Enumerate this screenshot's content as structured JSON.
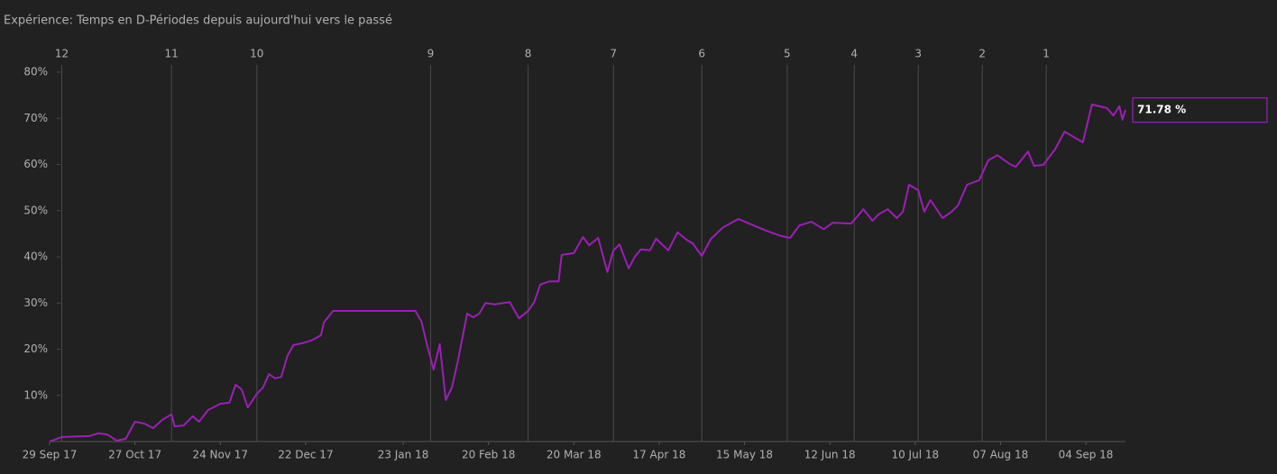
{
  "chart_data": {
    "type": "line",
    "title": "Expérience: Temps en D-Périodes depuis aujourd'hui vers le passé",
    "xlim": [
      "2017-09-29",
      "2018-09-17"
    ],
    "xticks": [
      {
        "value": "2017-09-29",
        "label": "29 Sep 17"
      },
      {
        "value": "2017-10-27",
        "label": "27 Oct 17"
      },
      {
        "value": "2017-11-24",
        "label": "24 Nov 17"
      },
      {
        "value": "2017-12-22",
        "label": "22 Dec 17"
      },
      {
        "value": "2018-01-23",
        "label": "23 Jan 18"
      },
      {
        "value": "2018-02-20",
        "label": "20 Feb 18"
      },
      {
        "value": "2018-03-20",
        "label": "20 Mar 18"
      },
      {
        "value": "2018-04-17",
        "label": "17 Apr 18"
      },
      {
        "value": "2018-05-15",
        "label": "15 May 18"
      },
      {
        "value": "2018-06-12",
        "label": "12 Jun 18"
      },
      {
        "value": "2018-07-10",
        "label": "10 Jul 18"
      },
      {
        "value": "2018-08-07",
        "label": "07 Aug 18"
      },
      {
        "value": "2018-09-04",
        "label": "04 Sep 18"
      }
    ],
    "x2ticks": [
      {
        "value": "2017-10-03",
        "label": "12"
      },
      {
        "value": "2017-11-08",
        "label": "11"
      },
      {
        "value": "2017-12-06",
        "label": "10"
      },
      {
        "value": "2018-02-01",
        "label": "9"
      },
      {
        "value": "2018-03-05",
        "label": "8"
      },
      {
        "value": "2018-04-02",
        "label": "7"
      },
      {
        "value": "2018-05-01",
        "label": "6"
      },
      {
        "value": "2018-05-29",
        "label": "5"
      },
      {
        "value": "2018-06-20",
        "label": "4"
      },
      {
        "value": "2018-07-11",
        "label": "3"
      },
      {
        "value": "2018-08-01",
        "label": "2"
      },
      {
        "value": "2018-08-22",
        "label": "1"
      }
    ],
    "ylim": [
      0,
      80
    ],
    "yticks": [
      {
        "value": 10,
        "label": "10%"
      },
      {
        "value": 20,
        "label": "20%"
      },
      {
        "value": 30,
        "label": "30%"
      },
      {
        "value": 40,
        "label": "40%"
      },
      {
        "value": 50,
        "label": "50%"
      },
      {
        "value": 60,
        "label": "60%"
      },
      {
        "value": 70,
        "label": "70%"
      },
      {
        "value": 80,
        "label": "80%"
      }
    ],
    "x": [
      "2017-09-29",
      "2017-10-03",
      "2017-10-12",
      "2017-10-15",
      "2017-10-18",
      "2017-10-21",
      "2017-10-24",
      "2017-10-27",
      "2017-10-30",
      "2017-11-02",
      "2017-11-05",
      "2017-11-08",
      "2017-11-09",
      "2017-11-12",
      "2017-11-15",
      "2017-11-17",
      "2017-11-20",
      "2017-11-24",
      "2017-11-27",
      "2017-11-29",
      "2017-12-01",
      "2017-12-03",
      "2017-12-06",
      "2017-12-08",
      "2017-12-10",
      "2017-12-12",
      "2017-12-14",
      "2017-12-16",
      "2017-12-18",
      "2017-12-21",
      "2017-12-24",
      "2017-12-27",
      "2017-12-28",
      "2017-12-31",
      "2018-01-27",
      "2018-01-29",
      "2018-01-31",
      "2018-02-02",
      "2018-02-04",
      "2018-02-06",
      "2018-02-08",
      "2018-02-10",
      "2018-02-13",
      "2018-02-15",
      "2018-02-17",
      "2018-02-19",
      "2018-02-22",
      "2018-02-27",
      "2018-03-02",
      "2018-03-05",
      "2018-03-07",
      "2018-03-09",
      "2018-03-12",
      "2018-03-15",
      "2018-03-16",
      "2018-03-20",
      "2018-03-23",
      "2018-03-25",
      "2018-03-28",
      "2018-03-31",
      "2018-04-02",
      "2018-04-04",
      "2018-04-07",
      "2018-04-09",
      "2018-04-11",
      "2018-04-14",
      "2018-04-16",
      "2018-04-20",
      "2018-04-23",
      "2018-04-26",
      "2018-04-28",
      "2018-05-01",
      "2018-05-04",
      "2018-05-08",
      "2018-05-13",
      "2018-05-18",
      "2018-05-22",
      "2018-05-27",
      "2018-05-30",
      "2018-06-02",
      "2018-06-06",
      "2018-06-10",
      "2018-06-13",
      "2018-06-19",
      "2018-06-23",
      "2018-06-26",
      "2018-06-28",
      "2018-07-01",
      "2018-07-04",
      "2018-07-06",
      "2018-07-08",
      "2018-07-11",
      "2018-07-13",
      "2018-07-15",
      "2018-07-19",
      "2018-07-22",
      "2018-07-24",
      "2018-07-27",
      "2018-07-31",
      "2018-08-03",
      "2018-08-06",
      "2018-08-10",
      "2018-08-12",
      "2018-08-16",
      "2018-08-18",
      "2018-08-21",
      "2018-08-25",
      "2018-08-28",
      "2018-09-03",
      "2018-09-06",
      "2018-09-11",
      "2018-09-13",
      "2018-09-15",
      "2018-09-16",
      "2018-09-17"
    ],
    "series": [
      {
        "color": "#9c1fb5",
        "values": [
          0,
          1,
          1.2,
          1.8,
          1.5,
          0.2,
          0.6,
          4.3,
          3.9,
          2.9,
          4.7,
          5.9,
          3.3,
          3.5,
          5.5,
          4.3,
          6.8,
          8.2,
          8.4,
          12.3,
          11.3,
          7.4,
          10.3,
          11.7,
          14.6,
          13.7,
          14,
          18.5,
          20.9,
          21.3,
          21.9,
          23,
          25.8,
          28.3,
          28.3,
          26,
          20.5,
          15.6,
          21.1,
          9,
          11.7,
          17.6,
          27.7,
          26.9,
          27.7,
          30,
          29.7,
          30.2,
          26.7,
          28.3,
          30.2,
          34,
          34.7,
          34.7,
          40.4,
          40.8,
          44.3,
          42.5,
          44.1,
          36.7,
          41.4,
          42.7,
          37.5,
          40,
          41.6,
          41.4,
          43.9,
          41.4,
          45.3,
          43.7,
          42.9,
          40.2,
          43.9,
          46.4,
          48.2,
          46.8,
          45.7,
          44.5,
          44.1,
          46.8,
          47.6,
          46,
          47.4,
          47.2,
          50.3,
          47.8,
          49.2,
          50.3,
          48.4,
          49.8,
          55.6,
          54.4,
          49.8,
          52.3,
          48.4,
          49.8,
          51.1,
          55.6,
          56.6,
          60.9,
          62,
          60.1,
          59.5,
          62.8,
          59.7,
          59.9,
          63.4,
          67.1,
          64.8,
          73,
          72.2,
          70.6,
          72.6,
          69.7,
          71.78
        ]
      }
    ],
    "annotation": {
      "value": 71.78,
      "label": "71.78 %"
    }
  }
}
